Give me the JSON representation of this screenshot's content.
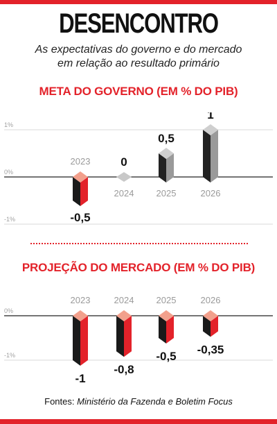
{
  "header": {
    "title": "DESENCONTRO",
    "subtitle_line1": "As expectativas do governo e do mercado",
    "subtitle_line2": "em relação ao resultado primário"
  },
  "footer": {
    "source_label": "Fontes:",
    "source_value": "Ministério da Fazenda e Boletim Focus"
  },
  "colors": {
    "accent": "#e3222a",
    "government_bar_front": "#222222",
    "government_bar_side": "#9a9a9a",
    "negative_bar_front": "#1a1a1a",
    "negative_bar_side": "#e3222a",
    "bar_top": "#f2a08c"
  },
  "chart_data": [
    {
      "type": "bar",
      "title": "META DO GOVERNO (EM % DO PIB)",
      "categories": [
        "2023",
        "2024",
        "2025",
        "2026"
      ],
      "values": [
        -0.5,
        0,
        0.5,
        1
      ],
      "value_labels": [
        "-0,5",
        "0",
        "0,5",
        "1"
      ],
      "y_ticks": [
        "1%",
        "0%",
        "-1%"
      ],
      "ylim": [
        -1,
        1
      ]
    },
    {
      "type": "bar",
      "title": "PROJEÇÃO DO MERCADO (EM % DO PIB)",
      "categories": [
        "2023",
        "2024",
        "2025",
        "2026"
      ],
      "values": [
        -1,
        -0.8,
        -0.5,
        -0.35
      ],
      "value_labels": [
        "-1",
        "-0,8",
        "-0,5",
        "-0,35"
      ],
      "y_ticks": [
        "0%",
        "-1%"
      ],
      "ylim": [
        -1,
        0
      ]
    }
  ]
}
